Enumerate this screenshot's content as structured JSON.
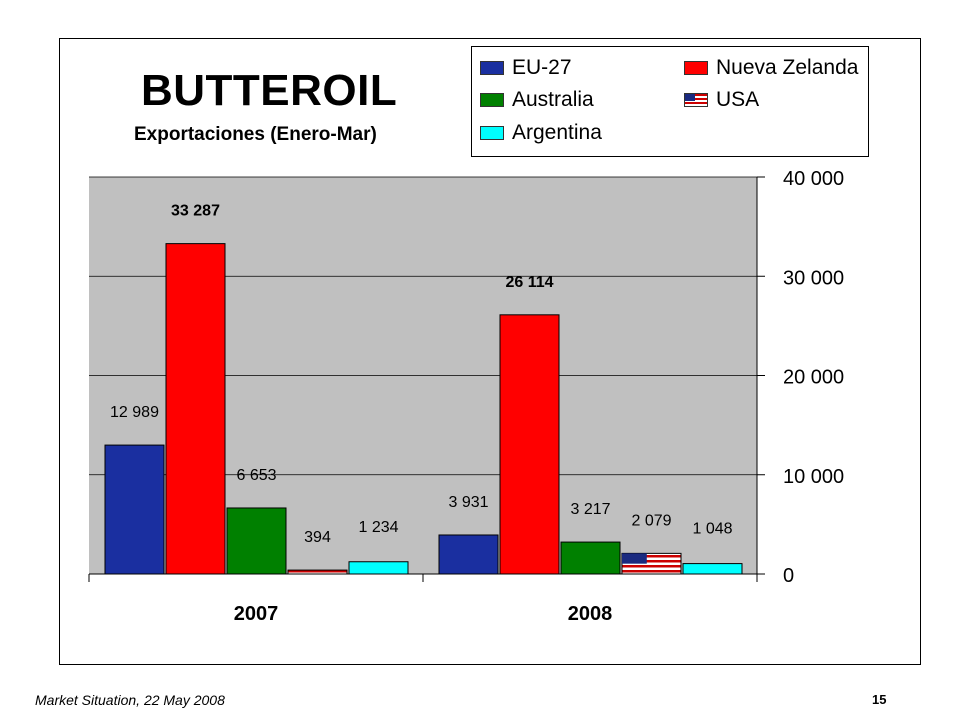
{
  "slide": {
    "title": "BUTTEROIL",
    "subtitle": "Exportaciones (Enero-Mar)",
    "footer_left": "Market Situation, 22 May 2008",
    "page_number": "15"
  },
  "chart_data": {
    "type": "bar",
    "categories": [
      "2007",
      "2008"
    ],
    "series": [
      {
        "name": "EU-27",
        "values": [
          12989,
          3931
        ],
        "labels": [
          "12 989",
          "3 931"
        ],
        "color": "#1a2fa0",
        "icon": "eu-flag-icon",
        "label_bold": false
      },
      {
        "name": "Nueva Zelanda",
        "values": [
          33287,
          26114
        ],
        "labels": [
          "33 287",
          "26 114"
        ],
        "color": "#ff0000",
        "icon": "red-square",
        "label_bold": true
      },
      {
        "name": "Australia",
        "values": [
          6653,
          3217
        ],
        "labels": [
          "6 653",
          "3 217"
        ],
        "color": "#008000",
        "icon": "green-square",
        "label_bold": false
      },
      {
        "name": "USA",
        "values": [
          394,
          2079
        ],
        "labels": [
          "394",
          "2 079"
        ],
        "color": "#cc0000",
        "icon": "us-flag-icon",
        "label_bold": false
      },
      {
        "name": "Argentina",
        "values": [
          1234,
          1048
        ],
        "labels": [
          "1 234",
          "1 048"
        ],
        "color": "#00ffff",
        "icon": "cyan-square",
        "label_bold": false
      }
    ],
    "ylim": [
      0,
      40000
    ],
    "yticks": [
      0,
      10000,
      20000,
      30000,
      40000
    ],
    "ytick_labels": [
      "0",
      "10 000",
      "20 000",
      "30 000",
      "40 000"
    ],
    "y_axis_side": "right",
    "gridlines": true,
    "plot_background": "#c0c0c0",
    "legend_position": "top-right",
    "xlabel": "",
    "ylabel": ""
  }
}
